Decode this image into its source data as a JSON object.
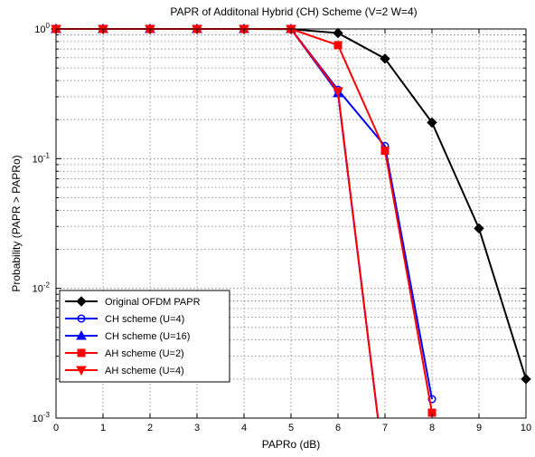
{
  "chart_data": {
    "type": "line",
    "title": "PAPR of Additonal Hybrid (CH) Scheme (V=2 W=4)",
    "xlabel": "PAPRo (dB)",
    "ylabel": "Probability (PAPR > PAPRo)",
    "xlim": [
      0,
      10
    ],
    "ylim": [
      0.001,
      1
    ],
    "y_scale": "log",
    "grid": true,
    "legend_position": "bottom-left",
    "x_ticks": [
      0,
      1,
      2,
      3,
      4,
      5,
      6,
      7,
      8,
      9,
      10
    ],
    "y_ticks": [
      {
        "value": 1,
        "base": "10",
        "exp": "0"
      },
      {
        "value": 0.1,
        "base": "10",
        "exp": "-1"
      },
      {
        "value": 0.01,
        "base": "10",
        "exp": "-2"
      },
      {
        "value": 0.001,
        "base": "10",
        "exp": "-3"
      }
    ],
    "series": [
      {
        "name": "Original OFDM PAPR",
        "color": "#000000",
        "marker": "diamond",
        "x": [
          0,
          1,
          2,
          3,
          4,
          5,
          6,
          7,
          8,
          9,
          10
        ],
        "y": [
          1,
          1,
          1,
          1,
          1,
          0.995,
          0.93,
          0.59,
          0.19,
          0.029,
          0.002
        ],
        "marker_x": [
          0,
          1,
          2,
          3,
          4,
          5,
          6,
          7,
          8,
          9,
          10
        ]
      },
      {
        "name": "CH scheme (U=4)",
        "color": "#0000ff",
        "marker": "circle",
        "x": [
          0,
          1,
          2,
          3,
          4,
          5,
          6,
          7,
          8
        ],
        "y": [
          1,
          1,
          1,
          1,
          1,
          1,
          0.34,
          0.125,
          0.0014
        ],
        "marker_x": [
          0,
          1,
          2,
          3,
          4,
          5,
          6,
          7,
          8
        ]
      },
      {
        "name": "CH scheme (U=16)",
        "color": "#0000ff",
        "marker": "triangle-up",
        "x": [
          0,
          1,
          2,
          3,
          4,
          5,
          6,
          6.85
        ],
        "y": [
          1,
          1,
          1,
          1,
          1,
          1,
          0.32,
          0.001
        ],
        "marker_x": [
          0,
          1,
          2,
          3,
          4,
          5,
          6
        ]
      },
      {
        "name": "AH scheme (U=2)",
        "color": "#ff0000",
        "marker": "square",
        "x": [
          0,
          1,
          2,
          3,
          4,
          5,
          6,
          7,
          8
        ],
        "y": [
          1,
          1,
          1,
          1,
          1,
          1,
          0.75,
          0.115,
          0.0011
        ],
        "marker_x": [
          0,
          1,
          2,
          3,
          4,
          5,
          6,
          7,
          8
        ]
      },
      {
        "name": "AH scheme (U=4)",
        "color": "#ff0000",
        "marker": "triangle-down",
        "x": [
          0,
          1,
          2,
          3,
          4,
          5,
          6,
          6.85
        ],
        "y": [
          1,
          1,
          1,
          1,
          1,
          1,
          0.33,
          0.001
        ],
        "marker_x": [
          0,
          1,
          2,
          3,
          4,
          5,
          6
        ]
      }
    ]
  }
}
